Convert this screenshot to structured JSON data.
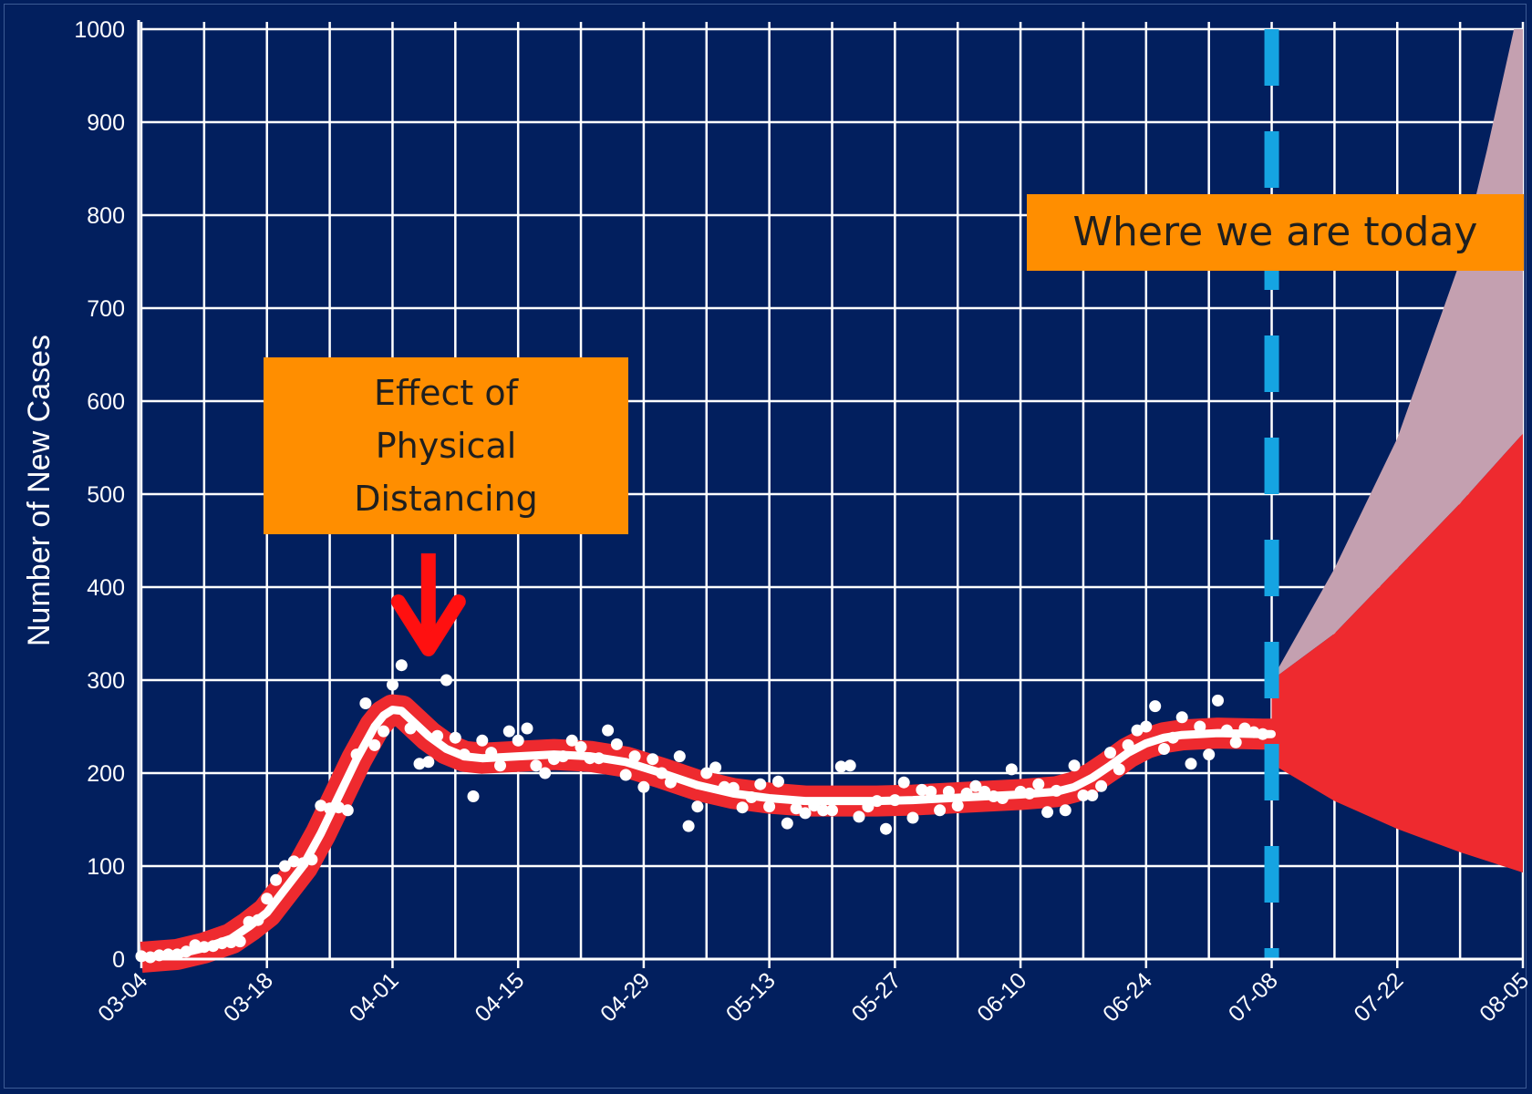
{
  "chart_data": {
    "type": "line",
    "ylabel": "Number of New Cases",
    "xlabel": "",
    "ylim": [
      0,
      1000
    ],
    "yticks": [
      0,
      100,
      200,
      300,
      400,
      500,
      600,
      700,
      800,
      900,
      1000
    ],
    "x_tick_labels": [
      "03-04",
      "03-18",
      "04-01",
      "04-15",
      "04-29",
      "05-13",
      "05-27",
      "06-10",
      "06-24",
      "07-08",
      "07-22",
      "08-05"
    ],
    "grid": true,
    "annotations": {
      "distancing_lines": [
        "Effect of",
        "Physical",
        "Distancing"
      ],
      "today": "Where we are today"
    },
    "today_marker": "07-08",
    "observed_points": [
      [
        "03-04",
        3
      ],
      [
        "03-05",
        2
      ],
      [
        "03-06",
        4
      ],
      [
        "03-07",
        5
      ],
      [
        "03-08",
        5
      ],
      [
        "03-09",
        8
      ],
      [
        "03-10",
        15
      ],
      [
        "03-11",
        13
      ],
      [
        "03-12",
        14
      ],
      [
        "03-13",
        17
      ],
      [
        "03-14",
        18
      ],
      [
        "03-15",
        19
      ],
      [
        "03-16",
        40
      ],
      [
        "03-17",
        42
      ],
      [
        "03-18",
        65
      ],
      [
        "03-19",
        85
      ],
      [
        "03-20",
        100
      ],
      [
        "03-21",
        105
      ],
      [
        "03-22",
        103
      ],
      [
        "03-23",
        107
      ],
      [
        "03-24",
        165
      ],
      [
        "03-25",
        162
      ],
      [
        "03-26",
        163
      ],
      [
        "03-27",
        160
      ],
      [
        "03-28",
        220
      ],
      [
        "03-29",
        275
      ],
      [
        "03-30",
        230
      ],
      [
        "03-31",
        245
      ],
      [
        "04-01",
        295
      ],
      [
        "04-02",
        316
      ],
      [
        "04-03",
        248
      ],
      [
        "04-04",
        210
      ],
      [
        "04-05",
        212
      ],
      [
        "04-06",
        240
      ],
      [
        "04-07",
        300
      ],
      [
        "04-08",
        238
      ],
      [
        "04-09",
        220
      ],
      [
        "04-10",
        175
      ],
      [
        "04-11",
        235
      ],
      [
        "04-12",
        222
      ],
      [
        "04-13",
        208
      ],
      [
        "04-14",
        245
      ],
      [
        "04-15",
        235
      ],
      [
        "04-16",
        248
      ],
      [
        "04-17",
        208
      ],
      [
        "04-18",
        200
      ],
      [
        "04-19",
        215
      ],
      [
        "04-20",
        218
      ],
      [
        "04-21",
        235
      ],
      [
        "04-22",
        228
      ],
      [
        "04-23",
        216
      ],
      [
        "04-24",
        216
      ],
      [
        "04-25",
        246
      ],
      [
        "04-26",
        231
      ],
      [
        "04-27",
        198
      ],
      [
        "04-28",
        218
      ],
      [
        "04-29",
        185
      ],
      [
        "04-30",
        215
      ],
      [
        "05-01",
        200
      ],
      [
        "05-02",
        190
      ],
      [
        "05-03",
        218
      ],
      [
        "05-04",
        143
      ],
      [
        "05-05",
        164
      ],
      [
        "05-06",
        200
      ],
      [
        "05-07",
        206
      ],
      [
        "05-08",
        185
      ],
      [
        "05-09",
        184
      ],
      [
        "05-10",
        163
      ],
      [
        "05-11",
        174
      ],
      [
        "05-12",
        188
      ],
      [
        "05-13",
        164
      ],
      [
        "05-14",
        191
      ],
      [
        "05-15",
        146
      ],
      [
        "05-16",
        162
      ],
      [
        "05-17",
        157
      ],
      [
        "05-18",
        165
      ],
      [
        "05-19",
        160
      ],
      [
        "05-20",
        160
      ],
      [
        "05-21",
        207
      ],
      [
        "05-22",
        208
      ],
      [
        "05-23",
        153
      ],
      [
        "05-24",
        164
      ],
      [
        "05-25",
        170
      ],
      [
        "05-26",
        140
      ],
      [
        "05-27",
        171
      ],
      [
        "05-28",
        190
      ],
      [
        "05-29",
        152
      ],
      [
        "05-30",
        182
      ],
      [
        "05-31",
        180
      ],
      [
        "06-01",
        160
      ],
      [
        "06-02",
        180
      ],
      [
        "06-03",
        165
      ],
      [
        "06-04",
        178
      ],
      [
        "06-05",
        186
      ],
      [
        "06-06",
        180
      ],
      [
        "06-07",
        175
      ],
      [
        "06-08",
        173
      ],
      [
        "06-09",
        204
      ],
      [
        "06-10",
        180
      ],
      [
        "06-11",
        178
      ],
      [
        "06-12",
        188
      ],
      [
        "06-13",
        158
      ],
      [
        "06-14",
        181
      ],
      [
        "06-15",
        160
      ],
      [
        "06-16",
        208
      ],
      [
        "06-17",
        176
      ],
      [
        "06-18",
        176
      ],
      [
        "06-19",
        186
      ],
      [
        "06-20",
        222
      ],
      [
        "06-21",
        204
      ],
      [
        "06-22",
        230
      ],
      [
        "06-23",
        246
      ],
      [
        "06-24",
        250
      ],
      [
        "06-25",
        272
      ],
      [
        "06-26",
        226
      ],
      [
        "06-27",
        238
      ],
      [
        "06-28",
        260
      ],
      [
        "06-29",
        210
      ],
      [
        "06-30",
        250
      ],
      [
        "07-01",
        220
      ],
      [
        "07-02",
        278
      ],
      [
        "07-03",
        246
      ],
      [
        "07-04",
        233
      ],
      [
        "07-05",
        248
      ],
      [
        "07-06",
        244
      ],
      [
        "07-07",
        242
      ]
    ],
    "smoothed_fit": [
      [
        "03-04",
        2
      ],
      [
        "03-08",
        5
      ],
      [
        "03-11",
        12
      ],
      [
        "03-14",
        22
      ],
      [
        "03-16",
        35
      ],
      [
        "03-18",
        50
      ],
      [
        "03-20",
        75
      ],
      [
        "03-22",
        100
      ],
      [
        "03-24",
        135
      ],
      [
        "03-26",
        175
      ],
      [
        "03-28",
        215
      ],
      [
        "03-30",
        250
      ],
      [
        "03-31",
        262
      ],
      [
        "04-01",
        268
      ],
      [
        "04-02",
        267
      ],
      [
        "04-03",
        258
      ],
      [
        "04-05",
        240
      ],
      [
        "04-07",
        226
      ],
      [
        "04-09",
        218
      ],
      [
        "04-11",
        216
      ],
      [
        "04-15",
        218
      ],
      [
        "04-19",
        220
      ],
      [
        "04-23",
        218
      ],
      [
        "04-27",
        212
      ],
      [
        "05-01",
        200
      ],
      [
        "05-05",
        187
      ],
      [
        "05-09",
        178
      ],
      [
        "05-13",
        173
      ],
      [
        "05-17",
        170
      ],
      [
        "05-21",
        170
      ],
      [
        "05-25",
        170
      ],
      [
        "05-29",
        171
      ],
      [
        "06-02",
        173
      ],
      [
        "06-06",
        175
      ],
      [
        "06-10",
        177
      ],
      [
        "06-14",
        180
      ],
      [
        "06-16",
        185
      ],
      [
        "06-18",
        195
      ],
      [
        "06-20",
        208
      ],
      [
        "06-22",
        222
      ],
      [
        "06-24",
        232
      ],
      [
        "06-26",
        238
      ],
      [
        "06-28",
        241
      ],
      [
        "07-02",
        243
      ],
      [
        "07-07",
        242
      ]
    ],
    "series": [
      {
        "name": "",
        "values": "observed_points",
        "color": "#ffffff"
      },
      {
        "name": "",
        "values": "smoothed_fit",
        "color": "#ffffff"
      }
    ],
    "projection_inner": {
      "upper": [
        [
          "07-08",
          300
        ],
        [
          "07-15",
          350
        ],
        [
          "07-22",
          420
        ],
        [
          "07-29",
          490
        ],
        [
          "08-05",
          565
        ]
      ],
      "lower": [
        [
          "07-08",
          210
        ],
        [
          "07-15",
          170
        ],
        [
          "07-22",
          140
        ],
        [
          "07-29",
          115
        ],
        [
          "08-05",
          93
        ]
      ]
    },
    "projection_outer": {
      "upper": [
        [
          "07-08",
          300
        ],
        [
          "07-15",
          420
        ],
        [
          "07-22",
          560
        ],
        [
          "07-29",
          750
        ],
        [
          "08-01",
          870
        ],
        [
          "08-04",
          1000
        ],
        [
          "08-05",
          1000
        ]
      ],
      "lower": [
        [
          "07-08",
          300
        ],
        [
          "07-15",
          350
        ],
        [
          "07-22",
          420
        ],
        [
          "07-29",
          490
        ],
        [
          "08-05",
          565
        ]
      ]
    },
    "colors": {
      "background": "#021f5e",
      "grid": "#ffffff",
      "points": "#ffffff",
      "fit_line": "#ffffff",
      "ci_band": "#ee2a2f",
      "projection_inner": "#ee2a2f",
      "projection_outer": "#c4a0b0",
      "today_line": "#15a4e2",
      "annotation_box": "#ff8e00",
      "arrow": "#ff1010"
    }
  }
}
